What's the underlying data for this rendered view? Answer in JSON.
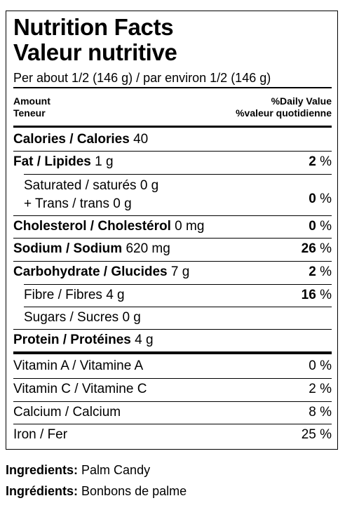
{
  "title_en": "Nutrition Facts",
  "title_fr": "Valeur nutritive",
  "serving": "Per about 1/2 (146 g) / par environ 1/2 (146 g)",
  "header": {
    "amount_en": "Amount",
    "amount_fr": "Teneur",
    "dv_en": "%Daily Value",
    "dv_fr": "%valeur quotidienne"
  },
  "calories": {
    "label": "Calories / Calories",
    "value": "40"
  },
  "nutrients": [
    {
      "label": "Fat / Lipides",
      "amount": "1 g",
      "dv": "2",
      "pct": "%"
    },
    {
      "label": "Saturated / saturés",
      "amount": "0 g"
    },
    {
      "label": "+ Trans / trans",
      "amount": "0 g",
      "dv": "0",
      "pct": "%"
    },
    {
      "label": "Cholesterol / Cholestérol",
      "amount": "0 mg",
      "dv": "0",
      "pct": "%"
    },
    {
      "label": "Sodium / Sodium",
      "amount": "620 mg",
      "dv": "26",
      "pct": "%"
    },
    {
      "label": "Carbohydrate / Glucides",
      "amount": "7 g",
      "dv": "2",
      "pct": "%"
    },
    {
      "label": "Fibre / Fibres",
      "amount": "4 g",
      "dv": "16",
      "pct": "%"
    },
    {
      "label": "Sugars / Sucres",
      "amount": "0 g"
    },
    {
      "label": "Protein / Protéines",
      "amount": "4 g"
    }
  ],
  "vitamins": [
    {
      "label": "Vitamin A / Vitamine A",
      "dv": "0 %"
    },
    {
      "label": "Vitamin C / Vitamine C",
      "dv": "2 %"
    },
    {
      "label": "Calcium / Calcium",
      "dv": "8 %"
    },
    {
      "label": "Iron / Fer",
      "dv": "25 %"
    }
  ],
  "ingredients": {
    "en_label": "Ingredients:",
    "en_value": "Palm Candy",
    "fr_label": "Ingrédients:",
    "fr_value": "Bonbons de palme"
  }
}
